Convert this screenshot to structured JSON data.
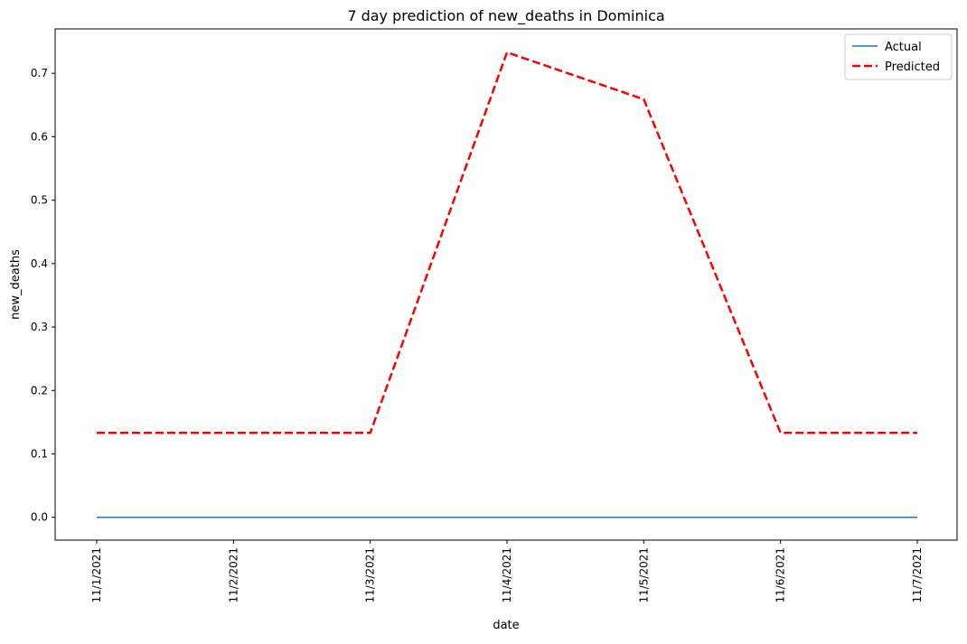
{
  "chart_data": {
    "type": "line",
    "title": "7 day prediction of new_deaths in Dominica",
    "xlabel": "date",
    "ylabel": "new_deaths",
    "x": [
      "11/1/2021",
      "11/2/2021",
      "11/3/2021",
      "11/4/2021",
      "11/5/2021",
      "11/6/2021",
      "11/7/2021"
    ],
    "ylim": [
      -0.036,
      0.77
    ],
    "yticks": [
      "0.0",
      "0.1",
      "0.2",
      "0.3",
      "0.4",
      "0.5",
      "0.6",
      "0.7"
    ],
    "grid": false,
    "legend_position": "top-right",
    "series": [
      {
        "name": "Actual",
        "color": "#1f77b4",
        "style": "solid",
        "values": [
          0,
          0,
          0,
          0,
          0,
          0,
          0
        ]
      },
      {
        "name": "Predicted",
        "color": "#ff0000",
        "style": "dashed",
        "values": [
          0.133,
          0.133,
          0.133,
          0.733,
          0.659,
          0.133,
          0.133
        ]
      }
    ]
  }
}
